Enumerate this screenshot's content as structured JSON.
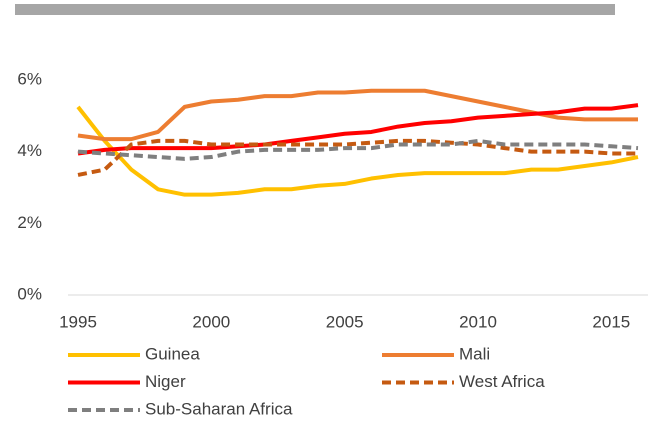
{
  "chart_data": {
    "type": "line",
    "x": [
      1995,
      1996,
      1997,
      1998,
      1999,
      2000,
      2001,
      2002,
      2003,
      2004,
      2005,
      2006,
      2007,
      2008,
      2009,
      2010,
      2011,
      2012,
      2013,
      2014,
      2015,
      2016
    ],
    "xlim": [
      1995,
      2016
    ],
    "xticks": [
      1995,
      2000,
      2005,
      2010,
      2015
    ],
    "ylim": [
      0,
      6
    ],
    "yticks": [
      {
        "value": 0,
        "label": "0%"
      },
      {
        "value": 2,
        "label": "2%"
      },
      {
        "value": 4,
        "label": "4%"
      },
      {
        "value": 6,
        "label": "6%"
      }
    ],
    "series": [
      {
        "name": "Guinea",
        "color": "#ffc000",
        "dashed": false,
        "values": [
          5.25,
          4.3,
          3.5,
          2.95,
          2.8,
          2.8,
          2.85,
          2.95,
          2.95,
          3.05,
          3.1,
          3.25,
          3.35,
          3.4,
          3.4,
          3.4,
          3.4,
          3.5,
          3.5,
          3.6,
          3.7,
          3.85
        ]
      },
      {
        "name": "Mali",
        "color": "#ed7d31",
        "dashed": false,
        "values": [
          4.45,
          4.35,
          4.35,
          4.55,
          5.25,
          5.4,
          5.45,
          5.55,
          5.55,
          5.65,
          5.65,
          5.7,
          5.7,
          5.7,
          5.55,
          5.4,
          5.25,
          5.1,
          4.95,
          4.9,
          4.9,
          4.9
        ]
      },
      {
        "name": "Niger",
        "color": "#ff0000",
        "dashed": false,
        "values": [
          3.95,
          4.05,
          4.1,
          4.1,
          4.1,
          4.1,
          4.15,
          4.2,
          4.3,
          4.4,
          4.5,
          4.55,
          4.7,
          4.8,
          4.85,
          4.95,
          5.0,
          5.05,
          5.1,
          5.2,
          5.2,
          5.3
        ]
      },
      {
        "name": "West Africa",
        "color": "#c55a11",
        "dashed": true,
        "values": [
          3.35,
          3.5,
          4.2,
          4.3,
          4.3,
          4.2,
          4.2,
          4.2,
          4.2,
          4.2,
          4.2,
          4.25,
          4.3,
          4.3,
          4.25,
          4.2,
          4.1,
          4.0,
          4.0,
          4.0,
          3.95,
          3.95
        ]
      },
      {
        "name": "Sub-Saharan Africa",
        "color": "#7f7f7f",
        "dashed": true,
        "values": [
          4.0,
          3.95,
          3.9,
          3.85,
          3.8,
          3.85,
          4.0,
          4.05,
          4.05,
          4.05,
          4.1,
          4.1,
          4.2,
          4.2,
          4.2,
          4.3,
          4.2,
          4.2,
          4.2,
          4.2,
          4.15,
          4.1
        ]
      }
    ]
  }
}
